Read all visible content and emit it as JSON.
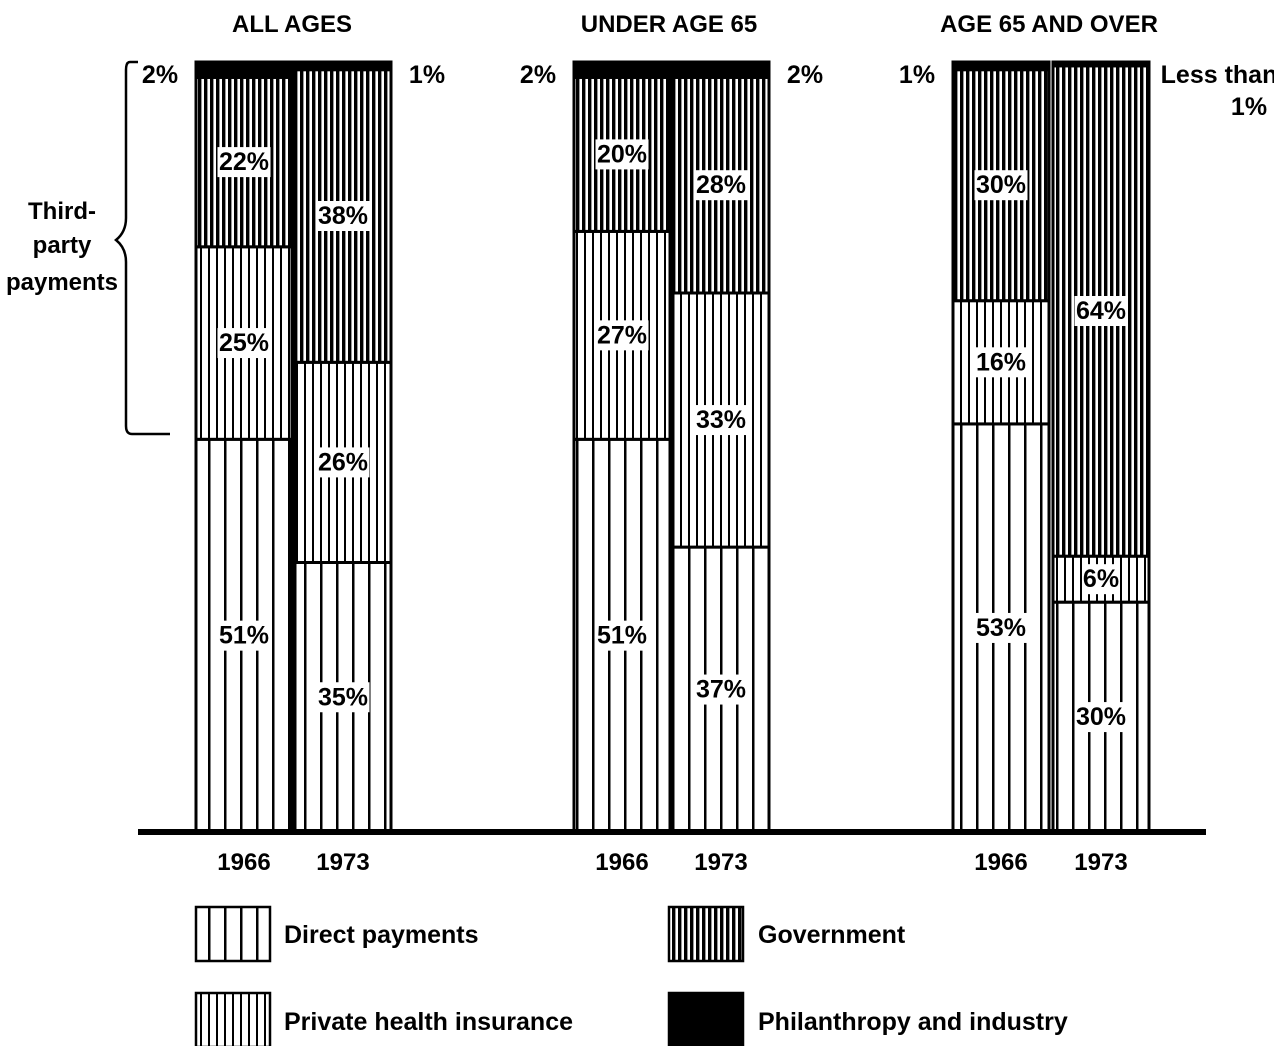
{
  "chart_data": {
    "type": "bar",
    "stacked": true,
    "unit": "%",
    "groups": [
      {
        "title": "ALL AGES",
        "bars": [
          {
            "year": "1966",
            "segments": [
              {
                "name": "Direct payments",
                "value": 51,
                "label": "51%"
              },
              {
                "name": "Private health insurance",
                "value": 25,
                "label": "25%"
              },
              {
                "name": "Government",
                "value": 22,
                "label": "22%"
              },
              {
                "name": "Philanthropy and industry",
                "value": 2,
                "label": "2%"
              }
            ]
          },
          {
            "year": "1973",
            "segments": [
              {
                "name": "Direct payments",
                "value": 35,
                "label": "35%"
              },
              {
                "name": "Private health insurance",
                "value": 26,
                "label": "26%"
              },
              {
                "name": "Government",
                "value": 38,
                "label": "38%"
              },
              {
                "name": "Philanthropy and industry",
                "value": 1,
                "label": "1%"
              }
            ]
          }
        ]
      },
      {
        "title": "UNDER AGE 65",
        "bars": [
          {
            "year": "1966",
            "segments": [
              {
                "name": "Direct payments",
                "value": 51,
                "label": "51%"
              },
              {
                "name": "Private health insurance",
                "value": 27,
                "label": "27%"
              },
              {
                "name": "Government",
                "value": 20,
                "label": "20%"
              },
              {
                "name": "Philanthropy and industry",
                "value": 2,
                "label": "2%"
              }
            ]
          },
          {
            "year": "1973",
            "segments": [
              {
                "name": "Direct payments",
                "value": 37,
                "label": "37%"
              },
              {
                "name": "Private health insurance",
                "value": 33,
                "label": "33%"
              },
              {
                "name": "Government",
                "value": 28,
                "label": "28%"
              },
              {
                "name": "Philanthropy and industry",
                "value": 2,
                "label": "2%"
              }
            ]
          }
        ]
      },
      {
        "title": "AGE 65 AND OVER",
        "bars": [
          {
            "year": "1966",
            "segments": [
              {
                "name": "Direct payments",
                "value": 53,
                "label": "53%"
              },
              {
                "name": "Private health insurance",
                "value": 16,
                "label": "16%"
              },
              {
                "name": "Government",
                "value": 30,
                "label": "30%"
              },
              {
                "name": "Philanthropy and industry",
                "value": 1,
                "label": "1%"
              }
            ]
          },
          {
            "year": "1973",
            "segments": [
              {
                "name": "Direct payments",
                "value": 30,
                "label": "30%"
              },
              {
                "name": "Private health insurance",
                "value": 6,
                "label": "6%"
              },
              {
                "name": "Government",
                "value": 64,
                "label": "64%"
              },
              {
                "name": "Philanthropy and industry",
                "value": 0.5,
                "label": "Less than 1%"
              }
            ]
          }
        ]
      }
    ],
    "legend": [
      {
        "name": "Direct payments",
        "pattern": "wide-vertical-stripes"
      },
      {
        "name": "Government",
        "pattern": "dense-vertical-stripes"
      },
      {
        "name": "Private health insurance",
        "pattern": "fine-vertical-stripes"
      },
      {
        "name": "Philanthropy and industry",
        "pattern": "solid-black"
      }
    ],
    "legend_placement": "bottom",
    "bracket_label": [
      "Third-",
      "party",
      "payments"
    ],
    "grid": false
  }
}
